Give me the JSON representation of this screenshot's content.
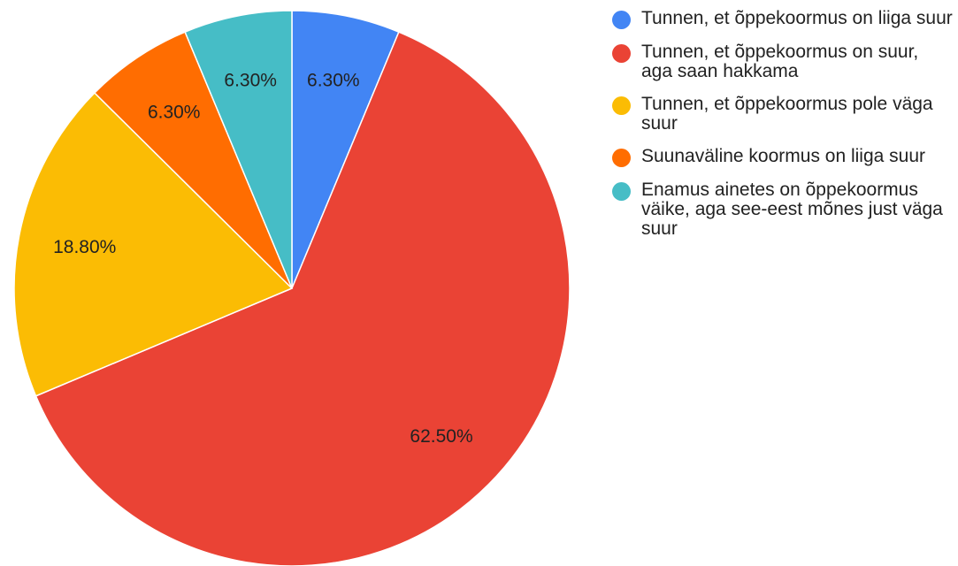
{
  "chart_data": {
    "type": "pie",
    "categories": [
      "Tunnen, et õppekoormus on liiga suur",
      "Tunnen, et õppekoormus on suur, aga saan hakkama",
      "Tunnen, et õppekoormus pole väga suur",
      "Suunaväline koormus on liiga suur",
      "Enamus ainetes on õppekoormus väike, aga see-eest mõnes just väga suur"
    ],
    "values": [
      6.3,
      62.5,
      18.8,
      6.3,
      6.3
    ],
    "value_labels": [
      "6.30%",
      "62.50%",
      "18.80%",
      "6.30%",
      "6.30%"
    ],
    "colors": [
      "#4285f4",
      "#ea4335",
      "#fbbc04",
      "#ff6d01",
      "#46bdc6"
    ],
    "legend": "right"
  }
}
